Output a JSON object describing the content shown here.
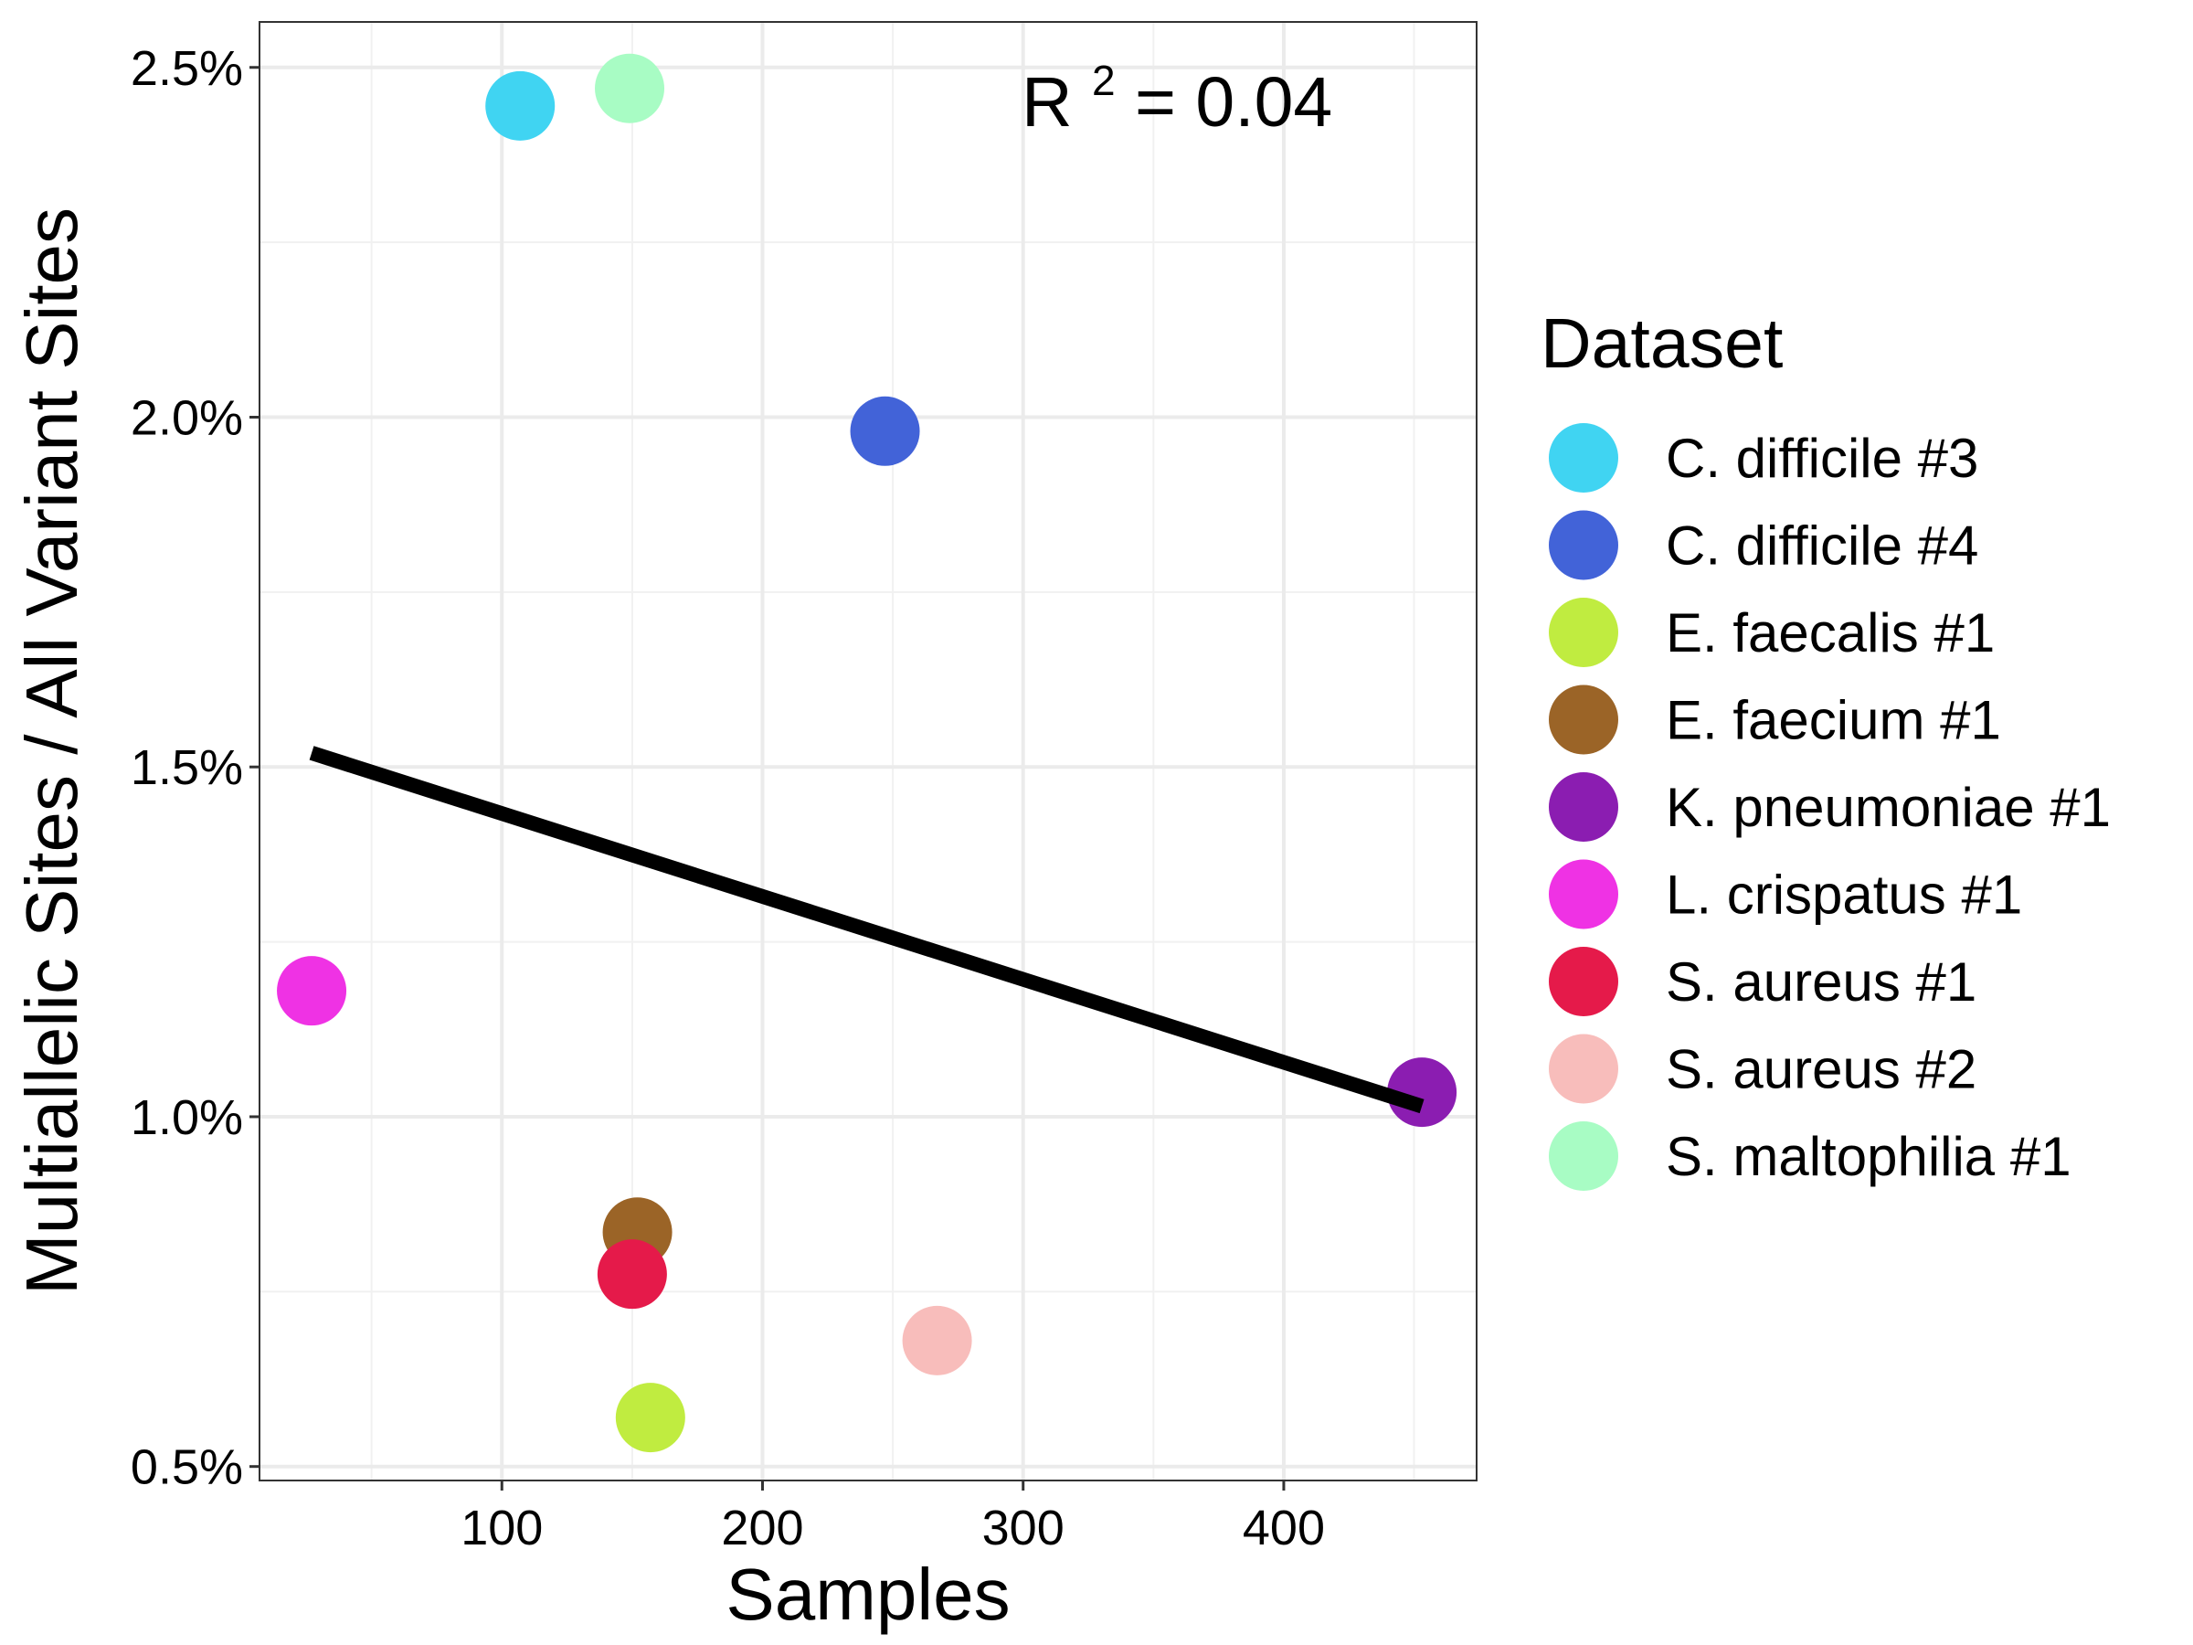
{
  "chart_data": {
    "type": "scatter",
    "title": "",
    "xlabel": "Samples",
    "ylabel": "Multiallelic Sites / All Variant Sites",
    "xlim": [
      7,
      474
    ],
    "ylim": [
      0.48,
      2.565
    ],
    "x_ticks": [
      100,
      200,
      300,
      400
    ],
    "x_minor_ticks": [
      50,
      150,
      250,
      350,
      450
    ],
    "y_ticks": [
      0.5,
      1.0,
      1.5,
      2.0,
      2.5
    ],
    "y_tick_labels": [
      "0.5%",
      "1.0%",
      "1.5%",
      "2.0%",
      "2.5%"
    ],
    "y_minor_ticks": [
      0.75,
      1.25,
      1.75,
      2.25
    ],
    "grid": true,
    "legend_title": "Dataset",
    "legend_position": "right",
    "annotation": {
      "base": "R",
      "sup": "2",
      "rest": " =  0.04"
    },
    "series": [
      {
        "name": "C. difficile #3",
        "color": "#40D4F2",
        "x": 107,
        "y": 2.445
      },
      {
        "name": "C. difficile #4",
        "color": "#4263D8",
        "x": 247,
        "y": 1.98
      },
      {
        "name": "E. faecalis #1",
        "color": "#C0EC40",
        "x": 157,
        "y": 0.57
      },
      {
        "name": "E. faecium #1",
        "color": "#9B6427",
        "x": 152,
        "y": 0.835
      },
      {
        "name": "K. pneumoniae #1",
        "color": "#8B1DB1",
        "x": 453,
        "y": 1.035
      },
      {
        "name": "L. crispatus #1",
        "color": "#EF32E4",
        "x": 27,
        "y": 1.18
      },
      {
        "name": "S. aureus #1",
        "color": "#E51A4A",
        "x": 150,
        "y": 0.775
      },
      {
        "name": "S. aureus #2",
        "color": "#F8BDBB",
        "x": 267,
        "y": 0.68
      },
      {
        "name": "S. maltophilia #1",
        "color": "#A8FCC4",
        "x": 149,
        "y": 2.47
      }
    ],
    "fit_line": {
      "x": [
        27,
        453
      ],
      "y": [
        1.52,
        1.015
      ],
      "color": "#000000"
    }
  }
}
